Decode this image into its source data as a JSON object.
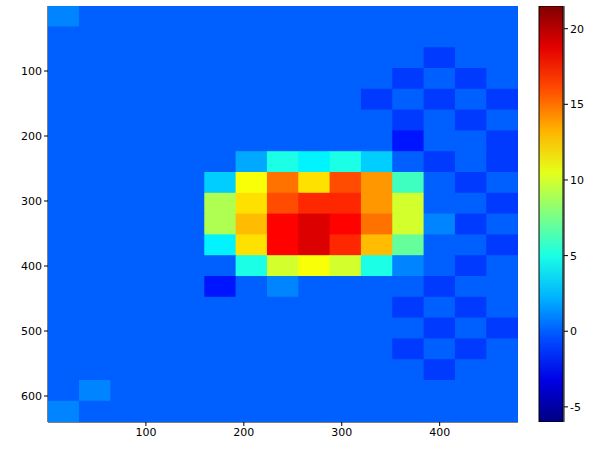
{
  "chart_data": {
    "type": "heatmap",
    "x": [
      16,
      48,
      80,
      112,
      144,
      176,
      208,
      240,
      272,
      304,
      336,
      368,
      400,
      432,
      464
    ],
    "y": [
      16,
      48,
      80,
      112,
      144,
      176,
      208,
      240,
      272,
      304,
      336,
      368,
      400,
      432,
      464,
      496,
      528,
      560,
      592,
      624
    ],
    "cells": [
      [
        1,
        0,
        0,
        0,
        0,
        0,
        0,
        0,
        0,
        0,
        0,
        0,
        0,
        0,
        0
      ],
      [
        0,
        0,
        0,
        0,
        0,
        0,
        0,
        0,
        0,
        0,
        0,
        0,
        0,
        0,
        0
      ],
      [
        0,
        0,
        0,
        0,
        0,
        0,
        0,
        0,
        0,
        0,
        0,
        0,
        -1,
        0,
        0
      ],
      [
        0,
        0,
        0,
        0,
        0,
        0,
        0,
        0,
        0,
        0,
        0,
        -1,
        0,
        -1,
        0
      ],
      [
        0,
        0,
        0,
        0,
        0,
        0,
        0,
        0,
        0,
        0,
        -1,
        0,
        -1,
        0,
        -1
      ],
      [
        0,
        0,
        0,
        0,
        0,
        0,
        0,
        0,
        0,
        0,
        0,
        -1,
        0,
        -1,
        0
      ],
      [
        0,
        0,
        0,
        0,
        0,
        0,
        0,
        0,
        0,
        0,
        0,
        -2,
        0,
        0,
        -1
      ],
      [
        0,
        0,
        0,
        0,
        0,
        0,
        2,
        5,
        4,
        5,
        3,
        0,
        -1,
        0,
        -1
      ],
      [
        0,
        0,
        0,
        0,
        0,
        3,
        11,
        15,
        12,
        16,
        14,
        6,
        0,
        -1,
        0
      ],
      [
        0,
        0,
        0,
        0,
        0,
        9,
        12,
        16,
        17,
        17,
        14,
        10,
        0,
        0,
        -1
      ],
      [
        0,
        0,
        0,
        0,
        0,
        9,
        13,
        18,
        19,
        18,
        15,
        10,
        1,
        -1,
        0
      ],
      [
        0,
        0,
        0,
        0,
        0,
        4,
        12,
        18,
        19,
        17,
        13,
        7,
        0,
        0,
        -1
      ],
      [
        0,
        0,
        0,
        0,
        0,
        0,
        5,
        10,
        11,
        10,
        5,
        1,
        0,
        -1,
        0
      ],
      [
        0,
        0,
        0,
        0,
        0,
        -2,
        0,
        1,
        0,
        0,
        0,
        0,
        -1,
        0,
        0
      ],
      [
        0,
        0,
        0,
        0,
        0,
        0,
        0,
        0,
        0,
        0,
        0,
        -1,
        0,
        -1,
        0
      ],
      [
        0,
        0,
        0,
        0,
        0,
        0,
        0,
        0,
        0,
        0,
        0,
        0,
        -1,
        0,
        -1
      ],
      [
        0,
        0,
        0,
        0,
        0,
        0,
        0,
        0,
        0,
        0,
        0,
        -1,
        0,
        -1,
        0
      ],
      [
        0,
        0,
        0,
        0,
        0,
        0,
        0,
        0,
        0,
        0,
        0,
        0,
        -1,
        0,
        0
      ],
      [
        0,
        1,
        0,
        0,
        0,
        0,
        0,
        0,
        0,
        0,
        0,
        0,
        0,
        0,
        0
      ],
      [
        1,
        0,
        0,
        0,
        0,
        0,
        0,
        0,
        0,
        0,
        0,
        0,
        0,
        0,
        0
      ]
    ],
    "xlim": [
      0,
      480
    ],
    "xticks": [
      100,
      200,
      300,
      400
    ],
    "ylim": [
      0,
      640
    ],
    "yticks": [
      100,
      200,
      300,
      400,
      500,
      600
    ],
    "colorbar": {
      "range": [
        -6,
        21.5
      ],
      "ticks": [
        -5,
        0,
        5,
        10,
        15,
        20
      ]
    }
  }
}
